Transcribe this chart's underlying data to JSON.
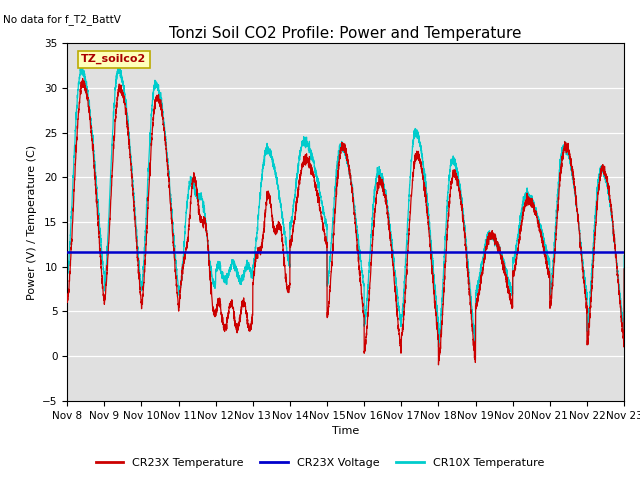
{
  "title": "Tonzi Soil CO2 Profile: Power and Temperature",
  "no_data_text": "No data for f_T2_BattV",
  "ylabel": "Power (V) / Temperature (C)",
  "xlabel": "Time",
  "ylim": [
    -5,
    35
  ],
  "yticks": [
    -5,
    0,
    5,
    10,
    15,
    20,
    25,
    30,
    35
  ],
  "xtick_labels": [
    "Nov 8",
    "Nov 9",
    "Nov 10",
    "Nov 11",
    "Nov 12",
    "Nov 13",
    "Nov 14",
    "Nov 15",
    "Nov 16",
    "Nov 17",
    "Nov 18",
    "Nov 19",
    "Nov 20",
    "Nov 21",
    "Nov 22",
    "Nov 23"
  ],
  "voltage_value": 11.7,
  "voltage_color": "#0000cc",
  "cr23x_color": "#cc0000",
  "cr10x_color": "#00cccc",
  "bg_color": "#e0e0e0",
  "legend_label_cr23x": "CR23X Temperature",
  "legend_label_voltage": "CR23X Voltage",
  "legend_label_cr10x": "CR10X Temperature",
  "annotation_text": "TZ_soilco2",
  "title_fontsize": 11,
  "axis_fontsize": 8,
  "tick_fontsize": 7.5,
  "day_peaks_cr23x": [
    30.5,
    30.0,
    29.0,
    18.5,
    4.5,
    16.5,
    22.0,
    23.5,
    19.5,
    22.5,
    20.5,
    13.5,
    17.5,
    23.5,
    21.0,
    11.0
  ],
  "day_mins_cr23x": [
    6.0,
    6.0,
    5.5,
    5.0,
    4.5,
    8.0,
    12.5,
    4.5,
    0.5,
    2.0,
    -0.5,
    5.5,
    9.0,
    5.5,
    1.5,
    10.0
  ],
  "day_peaks_cr10x": [
    32.0,
    32.0,
    30.5,
    19.5,
    9.5,
    23.0,
    24.0,
    23.5,
    20.5,
    25.0,
    22.0,
    13.5,
    18.0,
    23.5,
    21.0,
    12.5
  ],
  "day_mins_cr10x": [
    9.0,
    7.5,
    7.5,
    7.5,
    9.0,
    10.0,
    14.5,
    8.0,
    3.5,
    4.0,
    1.5,
    7.0,
    10.5,
    7.0,
    3.0,
    11.5
  ]
}
